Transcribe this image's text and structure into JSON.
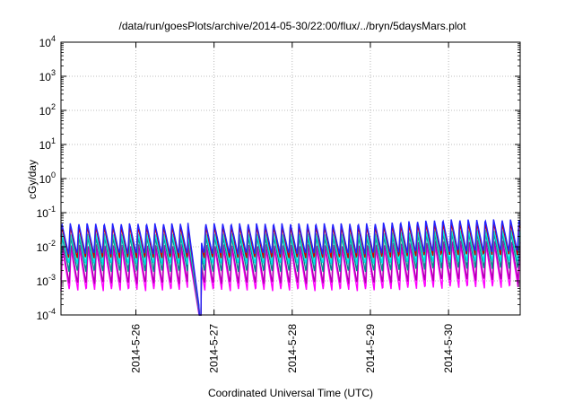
{
  "chart_data": {
    "type": "line",
    "title": "/data/run/goesPlots/archive/2014-05-30/22:00/flux/../bryn/5daysMars.plot",
    "xlabel": "Coordinated Universal Time (UTC)",
    "ylabel": "cGy/day",
    "yscale": "log",
    "ylim": [
      0.0001,
      10000
    ],
    "xlim": [
      "2014-05-25 01:00",
      "2014-05-30 22:00"
    ],
    "grid": true,
    "y_ticks": [
      {
        "mantissa": "10",
        "exp": "-4",
        "value": 0.0001
      },
      {
        "mantissa": "10",
        "exp": "-3",
        "value": 0.001
      },
      {
        "mantissa": "10",
        "exp": "-2",
        "value": 0.01
      },
      {
        "mantissa": "10",
        "exp": "-1",
        "value": 0.1
      },
      {
        "mantissa": "10",
        "exp": "0",
        "value": 1
      },
      {
        "mantissa": "10",
        "exp": "1",
        "value": 10
      },
      {
        "mantissa": "10",
        "exp": "2",
        "value": 100
      },
      {
        "mantissa": "10",
        "exp": "3",
        "value": 1000
      },
      {
        "mantissa": "10",
        "exp": "4",
        "value": 10000
      }
    ],
    "x_ticks": [
      {
        "label": "2014-5-26",
        "value": "2014-05-26 00:00"
      },
      {
        "label": "2014-5-27",
        "value": "2014-05-27 00:00"
      },
      {
        "label": "2014-5-28",
        "value": "2014-05-28 00:00"
      },
      {
        "label": "2014-5-29",
        "value": "2014-05-29 00:00"
      },
      {
        "label": "2014-5-30",
        "value": "2014-05-30 00:00"
      }
    ],
    "anomaly": {
      "start": "2014-05-26 16:00",
      "end": "2014-05-26 20:00",
      "min_value": 0.0001
    },
    "series": [
      {
        "color": "#ff00ff",
        "period_hours": 2.6,
        "peak": 0.009,
        "trough": 0.0005,
        "peak_late": 0.012,
        "trough_late": 0.0006
      },
      {
        "color": "#b000b0",
        "period_hours": 2.6,
        "peak": 0.012,
        "trough": 0.0008,
        "peak_late": 0.016,
        "trough_late": 0.001
      },
      {
        "color": "#008b8b",
        "period_hours": 2.6,
        "peak": 0.02,
        "trough": 0.0018,
        "peak_late": 0.026,
        "trough_late": 0.0022
      },
      {
        "color": "#00e5e5",
        "period_hours": 2.6,
        "peak": 0.025,
        "trough": 0.003,
        "peak_late": 0.032,
        "trough_late": 0.0035
      },
      {
        "color": "#cc0000",
        "period_hours": 2.6,
        "peak": 0.04,
        "trough": 0.0045,
        "peak_late": 0.05,
        "trough_late": 0.0055
      },
      {
        "color": "#2222ff",
        "period_hours": 2.6,
        "peak": 0.05,
        "trough": 0.006,
        "peak_late": 0.065,
        "trough_late": 0.007
      }
    ]
  }
}
